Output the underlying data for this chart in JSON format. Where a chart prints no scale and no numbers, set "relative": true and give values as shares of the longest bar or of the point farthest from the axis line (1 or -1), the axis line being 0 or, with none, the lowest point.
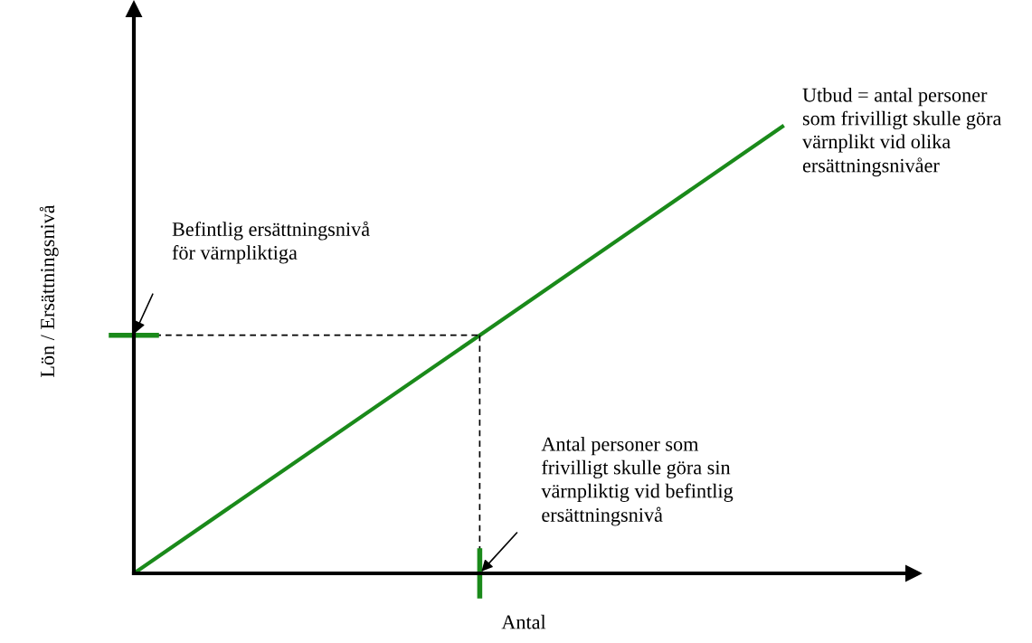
{
  "chart_data": {
    "type": "line",
    "relative": true,
    "xlabel": "Antal",
    "ylabel": "Lön / Ersättningsnivå",
    "categories": [
      null,
      null,
      null,
      null,
      null,
      null,
      null,
      null,
      null,
      null,
      null,
      null,
      null,
      null,
      null,
      null
    ],
    "series": [
      {
        "color": "#1a8a1a",
        "values": [
          0,
          null,
          null,
          null,
          null,
          null,
          null,
          null,
          0.533,
          null,
          null,
          null,
          null,
          null,
          null,
          1
        ]
      },
      {
        "color": "#000000",
        "line_style": "dashed",
        "values": [
          0.533,
          0.533,
          0.533,
          0.533,
          0.533,
          0.533,
          0.533,
          0.533,
          0.533,
          null,
          null,
          null,
          null,
          null,
          null,
          null
        ]
      }
    ],
    "annotations": [
      "Befintlig ersättningsnivå\nför värnpliktiga",
      "Antal personer som\nfrivilligt skulle göra sin\nvärnpliktig vid befintlig\nersättningsnivå",
      "Utbud = antal personer\nsom frivilligt skulle göra\nvärnplikt vid olika\nersättningsnivåer"
    ],
    "grid": false,
    "legend": false
  }
}
